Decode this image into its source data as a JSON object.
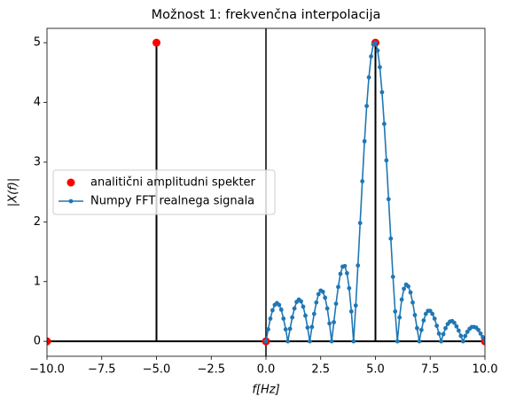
{
  "chart_data": {
    "type": "line",
    "title": "Možnost 1: frekvenčna interpolacija",
    "xlabel": "f[Hz]",
    "ylabel": "|X(f)|",
    "xlim": [
      -10,
      10
    ],
    "ylim": [
      -0.25,
      5.24
    ],
    "xticks": [
      {
        "value": -10,
        "label": "−10.0"
      },
      {
        "value": -7.5,
        "label": "−7.5"
      },
      {
        "value": -5,
        "label": "−5.0"
      },
      {
        "value": -2.5,
        "label": "−2.5"
      },
      {
        "value": 0,
        "label": "0.0"
      },
      {
        "value": 2.5,
        "label": "2.5"
      },
      {
        "value": 5,
        "label": "5.0"
      },
      {
        "value": 7.5,
        "label": "7.5"
      },
      {
        "value": 10,
        "label": "10.0"
      }
    ],
    "yticks": [
      0,
      1,
      2,
      3,
      4,
      5
    ],
    "vline_x": 0,
    "legend": "center left",
    "series": [
      {
        "name": "analitični amplitudni spekter",
        "type": "stem",
        "color": "#ff0000",
        "stem_color": "#000000",
        "x": [
          -10,
          -5,
          0,
          5,
          10
        ],
        "values": [
          0,
          5,
          0,
          5,
          0
        ]
      },
      {
        "name": "Numpy FFT realnega signala",
        "type": "line",
        "color": "#1f77b4",
        "x": [
          0,
          0.1,
          0.2,
          0.3,
          0.4,
          0.5,
          0.6,
          0.7,
          0.8,
          0.9,
          1,
          1.1,
          1.2,
          1.3,
          1.4,
          1.5,
          1.6,
          1.7,
          1.8,
          1.9,
          2,
          2.1,
          2.2,
          2.3,
          2.4,
          2.5,
          2.6,
          2.7,
          2.8,
          2.9,
          3,
          3.1,
          3.2,
          3.3,
          3.4,
          3.5,
          3.6,
          3.7,
          3.8,
          3.9,
          4,
          4.1,
          4.2,
          4.3,
          4.4,
          4.5,
          4.6,
          4.7,
          4.8,
          4.9,
          5,
          5.1,
          5.2,
          5.3,
          5.4,
          5.5,
          5.6,
          5.7,
          5.8,
          5.9,
          6,
          6.1,
          6.2,
          6.3,
          6.4,
          6.5,
          6.6,
          6.7,
          6.8,
          6.9,
          7,
          7.1,
          7.2,
          7.3,
          7.4,
          7.5,
          7.6,
          7.7,
          7.8,
          7.9,
          8,
          8.1,
          8.2,
          8.3,
          8.4,
          8.5,
          8.6,
          8.7,
          8.8,
          8.9,
          9,
          9.1,
          9.2,
          9.3,
          9.4,
          9.5,
          9.6,
          9.7,
          9.8,
          9.9,
          10
        ],
        "values": [
          0,
          0.2,
          0.38,
          0.52,
          0.61,
          0.64,
          0.61,
          0.53,
          0.38,
          0.2,
          0,
          0.21,
          0.4,
          0.55,
          0.66,
          0.7,
          0.67,
          0.58,
          0.43,
          0.23,
          0,
          0.24,
          0.46,
          0.65,
          0.79,
          0.85,
          0.83,
          0.73,
          0.55,
          0.3,
          0,
          0.32,
          0.63,
          0.91,
          1.13,
          1.25,
          1.26,
          1.14,
          0.89,
          0.5,
          0,
          0.6,
          1.27,
          1.98,
          2.68,
          3.35,
          3.94,
          4.42,
          4.77,
          4.97,
          5,
          4.87,
          4.59,
          4.17,
          3.64,
          3.03,
          2.38,
          1.72,
          1.08,
          0.5,
          0,
          0.4,
          0.7,
          0.88,
          0.95,
          0.92,
          0.82,
          0.65,
          0.44,
          0.22,
          0,
          0.19,
          0.35,
          0.46,
          0.51,
          0.51,
          0.46,
          0.38,
          0.26,
          0.13,
          0,
          0.12,
          0.22,
          0.29,
          0.33,
          0.34,
          0.31,
          0.25,
          0.18,
          0.09,
          0,
          0.09,
          0.16,
          0.21,
          0.24,
          0.24,
          0.23,
          0.19,
          0.13,
          0.07,
          0
        ]
      }
    ]
  }
}
